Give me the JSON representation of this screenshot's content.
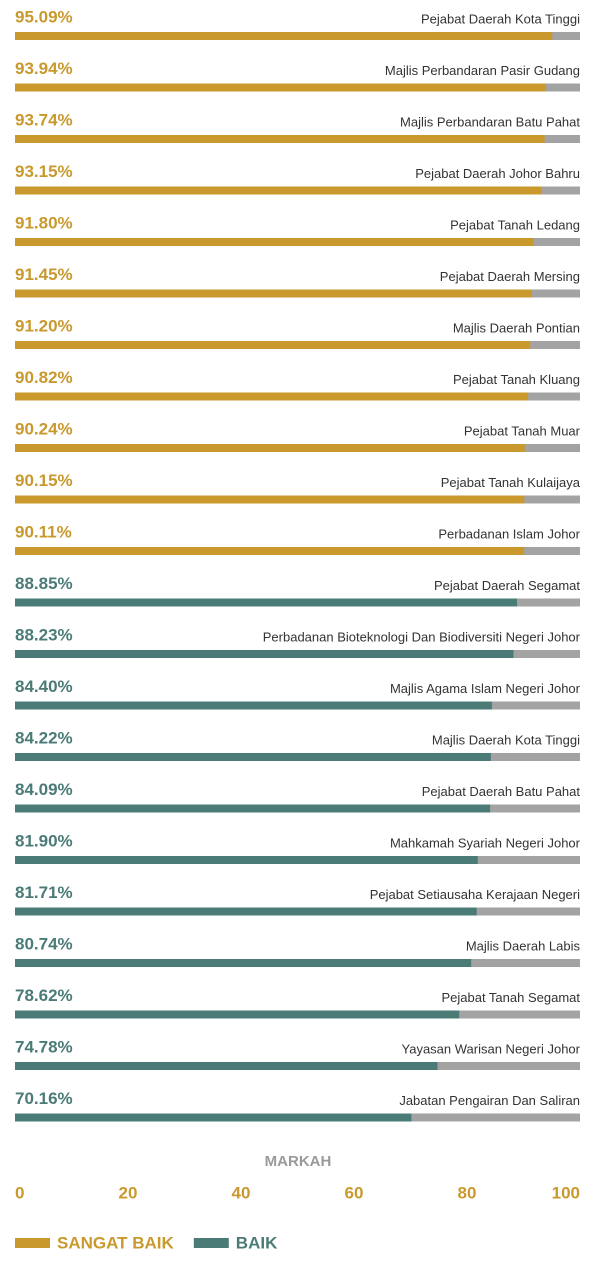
{
  "chart_data": {
    "type": "bar",
    "orientation": "horizontal",
    "categories": [
      "Pejabat Daerah Kota Tinggi",
      "Majlis Perbandaran Pasir Gudang",
      "Majlis Perbandaran Batu Pahat",
      "Pejabat Daerah Johor Bahru",
      "Pejabat Tanah Ledang",
      "Pejabat Daerah Mersing",
      "Majlis Daerah Pontian",
      "Pejabat Tanah Kluang",
      "Pejabat Tanah Muar",
      "Pejabat Tanah Kulaijaya",
      "Perbadanan Islam Johor",
      "Pejabat Daerah Segamat",
      "Perbadanan Bioteknologi Dan Biodiversiti Negeri Johor",
      "Majlis Agama Islam Negeri Johor",
      "Majlis Daerah Kota Tinggi",
      "Pejabat Daerah Batu Pahat",
      "Mahkamah Syariah Negeri Johor",
      "Pejabat Setiausaha Kerajaan Negeri",
      "Majlis Daerah Labis",
      "Pejabat Tanah Segamat",
      "Yayasan Warisan Negeri Johor",
      "Jabatan Pengairan Dan Saliran"
    ],
    "series": [
      {
        "name": "SANGAT BAIK",
        "color": "#c9992e",
        "values": [
          95.09,
          93.94,
          93.74,
          93.15,
          91.8,
          91.45,
          91.2,
          90.82,
          90.24,
          90.15,
          90.11,
          null,
          null,
          null,
          null,
          null,
          null,
          null,
          null,
          null,
          null,
          null
        ],
        "value_labels": [
          "95.09%",
          "93.94%",
          "93.74%",
          "93.15%",
          "91.80%",
          "91.45%",
          "91.20%",
          "90.82%",
          "90.24%",
          "90.15%",
          "90.11%",
          null,
          null,
          null,
          null,
          null,
          null,
          null,
          null,
          null,
          null,
          null
        ]
      },
      {
        "name": "BAIK",
        "color": "#4b7b77",
        "values": [
          null,
          null,
          null,
          null,
          null,
          null,
          null,
          null,
          null,
          null,
          null,
          88.85,
          88.23,
          84.4,
          84.22,
          84.09,
          81.9,
          81.71,
          80.74,
          78.62,
          74.78,
          70.16
        ],
        "value_labels": [
          null,
          null,
          null,
          null,
          null,
          null,
          null,
          null,
          null,
          null,
          null,
          "88.85%",
          "88.23%",
          "84.40%",
          "84.22%",
          "84.09%",
          "81.90%",
          "81.71%",
          "80.74%",
          "78.62%",
          "74.78%",
          "70.16%"
        ]
      }
    ],
    "xlabel": "MARKAH",
    "xlim": [
      0,
      100
    ],
    "xticks": [
      0,
      20,
      40,
      60,
      80,
      100
    ],
    "track_color": "#a3a3a3",
    "legend": "bottom-left"
  }
}
